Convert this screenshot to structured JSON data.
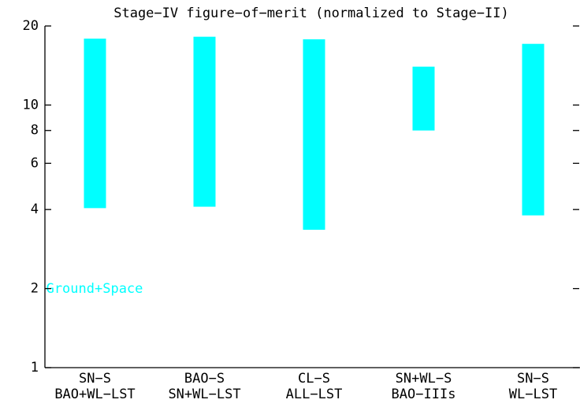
{
  "chart_data": {
    "type": "floating-bar",
    "title": "Stage−IV figure−of−merit (normalized to Stage−II)",
    "categories": [
      [
        "SN−S",
        "BAO+WL−LST"
      ],
      [
        "BAO−S",
        "SN+WL−LST"
      ],
      [
        "CL−S",
        "ALL−LST"
      ],
      [
        "SN+WL−S",
        "BAO−IIIs"
      ],
      [
        "SN−S",
        "WL−LST"
      ]
    ],
    "low": [
      4.05,
      4.1,
      3.35,
      8,
      3.8
    ],
    "high": [
      17.9,
      18.2,
      17.8,
      14,
      17.1
    ],
    "color": "#00ffff",
    "ylim": [
      1,
      20
    ],
    "yticks": [
      1,
      2,
      4,
      6,
      8,
      10,
      20
    ],
    "ylog": true,
    "annotation": "Ground+Space"
  }
}
